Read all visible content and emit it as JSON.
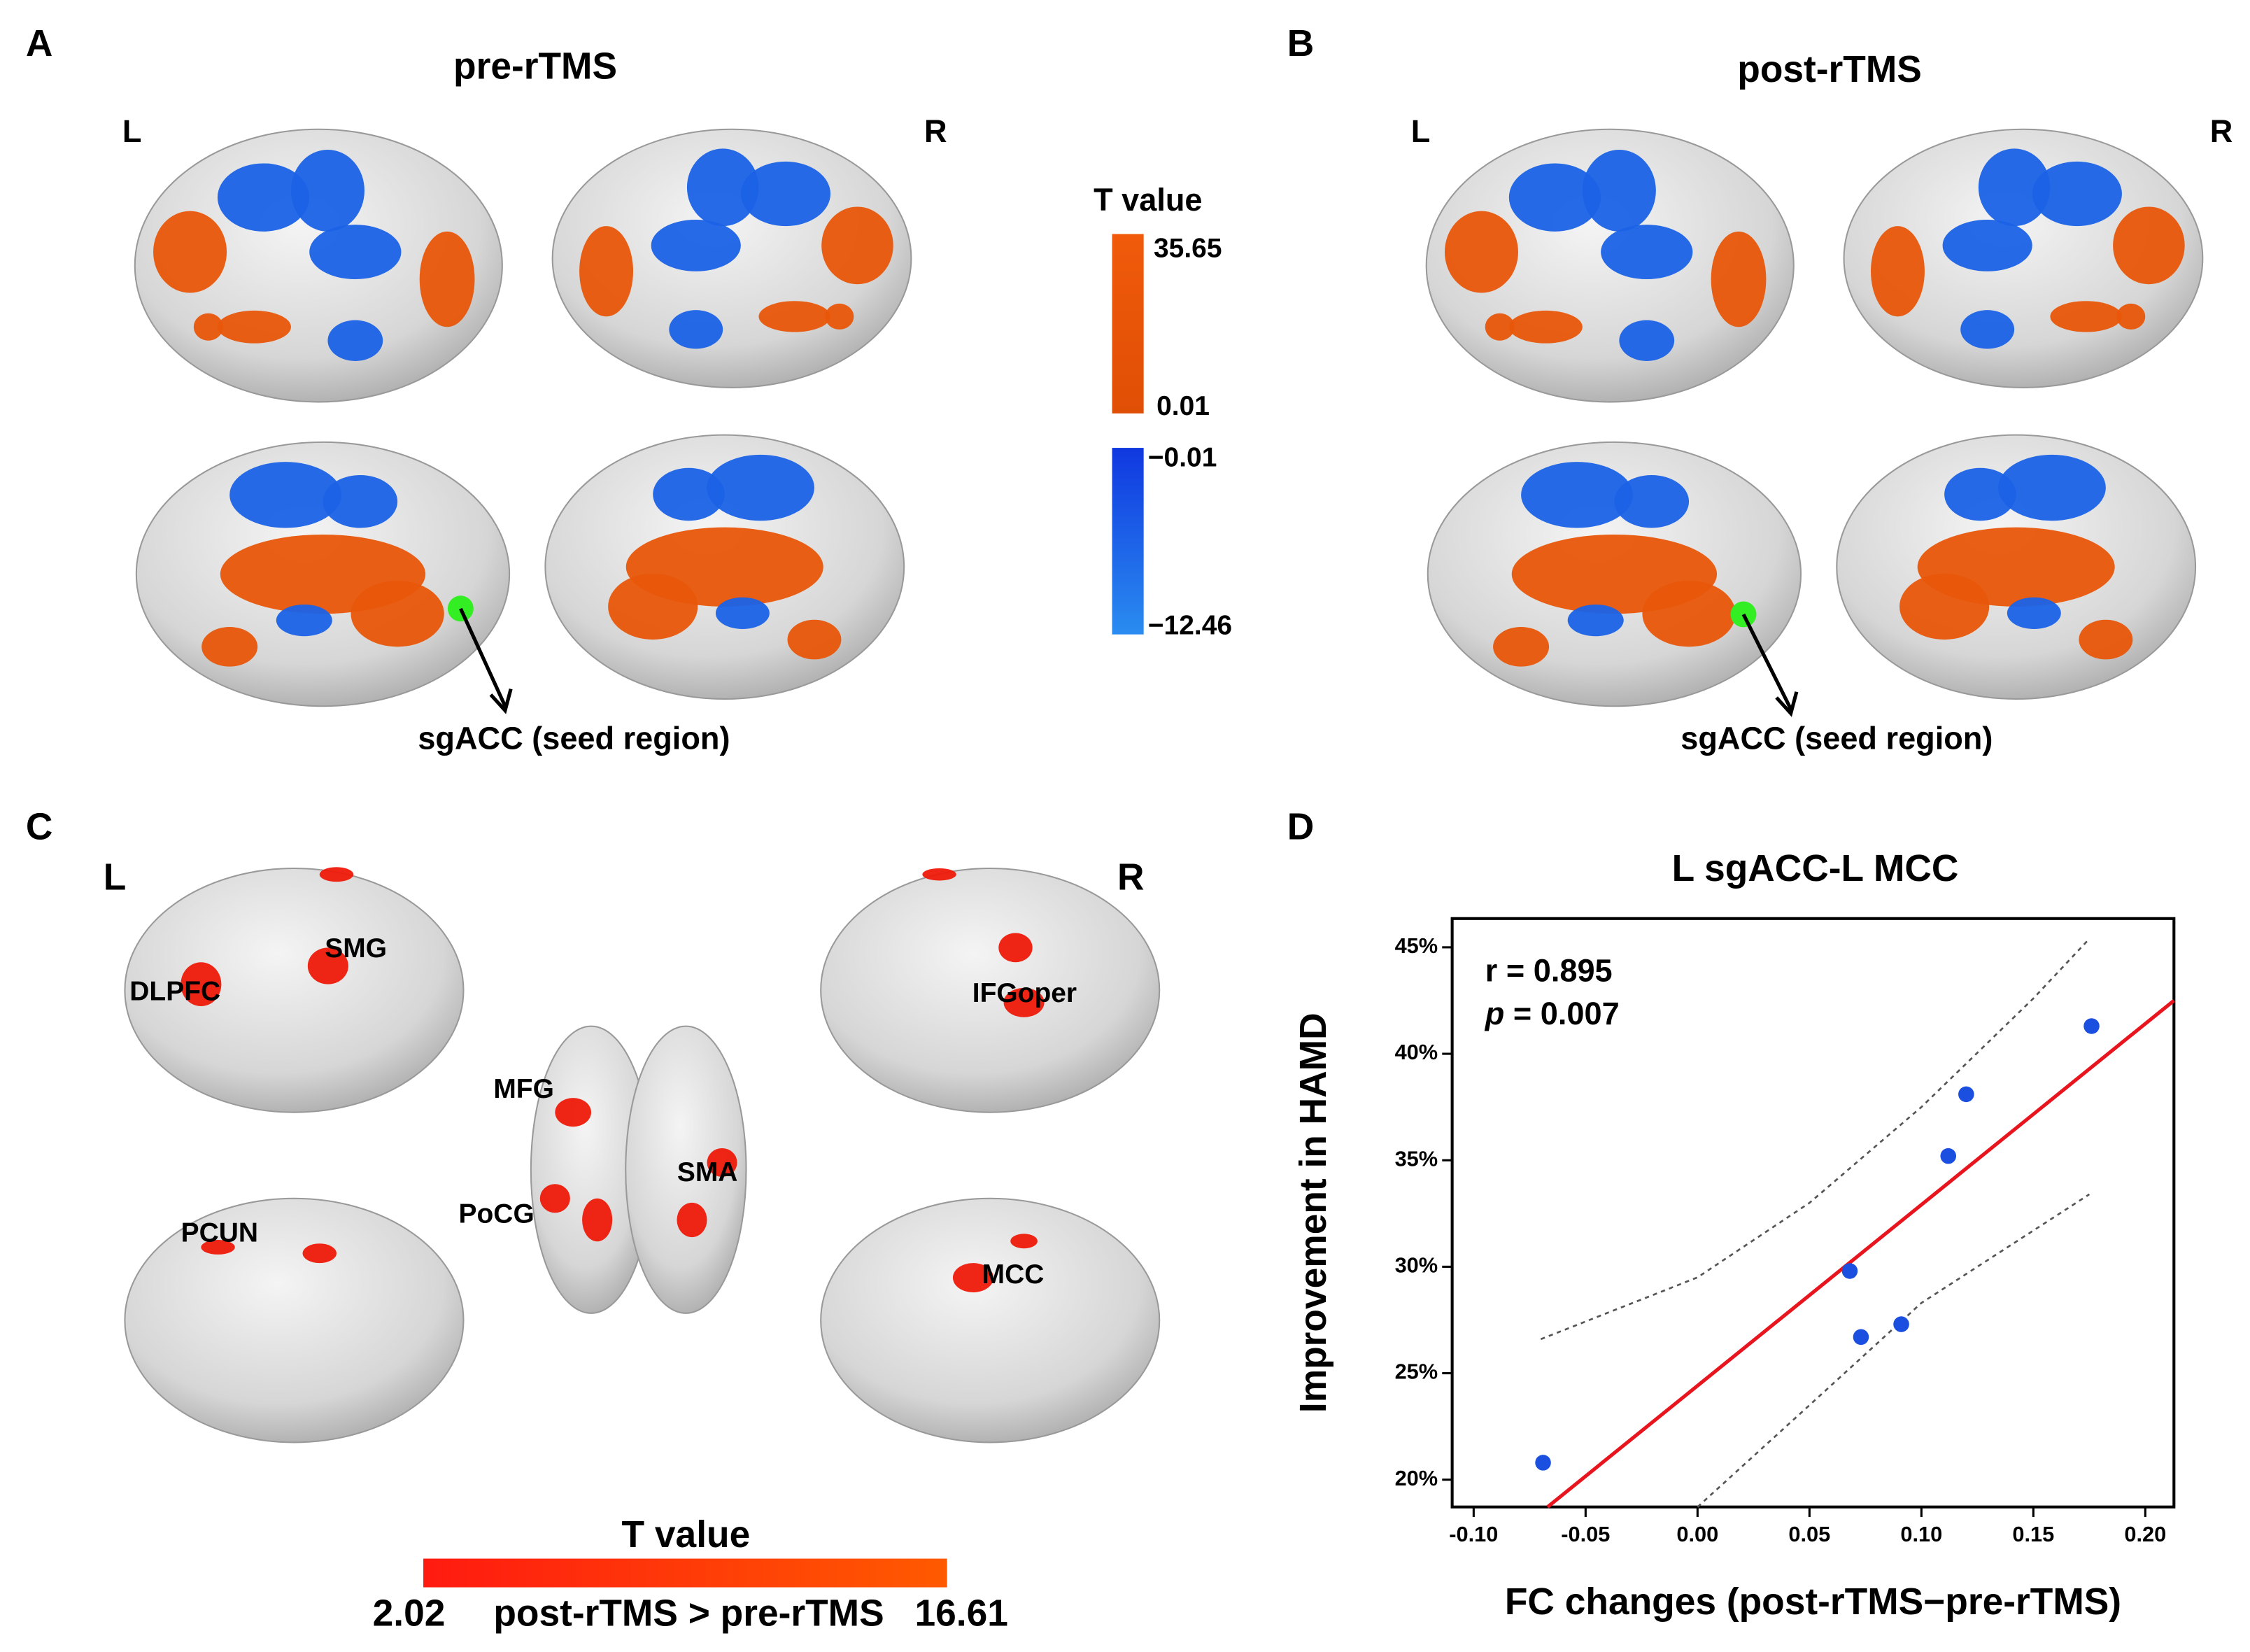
{
  "panel_a": {
    "letter": "A",
    "title": "pre-rTMS",
    "left": "L",
    "right": "R",
    "seed_label": "sgACC (seed region)"
  },
  "panel_b": {
    "letter": "B",
    "title": "post-rTMS",
    "left": "L",
    "right": "R",
    "seed_label": "sgACC (seed region)"
  },
  "colorbar_ab": {
    "title": "T value",
    "pos_max": 35.65,
    "pos_min": 0.01,
    "neg_max": {
      "value": -0.01,
      "label": "−0.01"
    },
    "neg_min": {
      "value": -12.46,
      "label": "−12.46"
    }
  },
  "panel_c": {
    "letter": "C",
    "left": "L",
    "right": "R",
    "regions": [
      "DLPFC",
      "SMG",
      "IFGoper",
      "MFG",
      "SMA",
      "PoCG",
      "PCUN",
      "MCC"
    ],
    "colorbar": {
      "title": "T value",
      "min": 2.02,
      "caption": "post-rTMS > pre-rTMS",
      "max": 16.61
    }
  },
  "chart_data": {
    "type": "scatter",
    "letter": "D",
    "title": "L sgACC-L MCC",
    "annotation_r": "r = 0.895",
    "annotation_p": {
      "symbol": "p",
      "text": " = 0.007"
    },
    "x_label": "FC changes (post-rTMS−pre-rTMS)",
    "y_label": "Improvement in HAMD",
    "xlim": [
      -0.1096,
      0.2128
    ],
    "ylim": [
      18.72,
      46.35
    ],
    "xticks": [
      {
        "value": -0.1,
        "label": "-0.10"
      },
      {
        "value": -0.05,
        "label": "-0.05"
      },
      {
        "value": 0,
        "label": "0.00"
      },
      {
        "value": 0.05,
        "label": "0.05"
      },
      {
        "value": 0.1,
        "label": "0.10"
      },
      {
        "value": 0.15,
        "label": "0.15"
      },
      {
        "value": 0.2,
        "label": "0.20"
      }
    ],
    "yticks": [
      {
        "value": 20,
        "label": "20%"
      },
      {
        "value": 25,
        "label": "25%"
      },
      {
        "value": 30,
        "label": "30%"
      },
      {
        "value": 35,
        "label": "35%"
      },
      {
        "value": 40,
        "label": "40%"
      },
      {
        "value": 45,
        "label": "45%"
      }
    ],
    "x": [
      -0.069,
      0.068,
      0.073,
      0.091,
      0.112,
      0.12,
      0.176
    ],
    "values": [
      20.8,
      29.8,
      26.7,
      27.3,
      35.2,
      38.1,
      41.3
    ],
    "color": "#1a4fe0",
    "fit": {
      "x": [
        -0.067,
        0.2128
      ],
      "values": [
        18.72,
        42.5
      ],
      "color": "#e8141e"
    },
    "ci_upper": {
      "x": [
        -0.07,
        0.0,
        0.05,
        0.1,
        0.15,
        0.175
      ],
      "values": [
        26.6,
        29.5,
        33.0,
        37.5,
        42.6,
        45.4
      ]
    },
    "ci_lower": {
      "x": [
        0.0,
        0.05,
        0.1,
        0.15,
        0.175
      ],
      "values": [
        18.72,
        23.5,
        28.3,
        31.7,
        33.4
      ]
    }
  }
}
